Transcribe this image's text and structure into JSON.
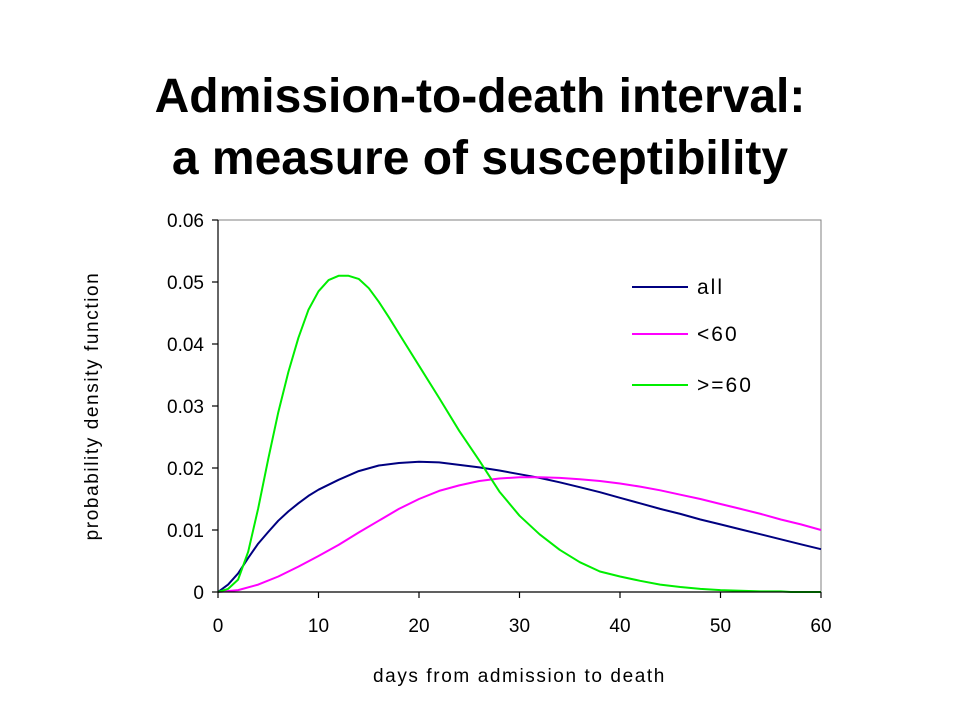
{
  "title": {
    "line1": "Admission-to-death interval:",
    "line2": "a measure of susceptibility"
  },
  "chart_data": {
    "type": "line",
    "xlabel": "days from admission to death",
    "ylabel": "probability density function",
    "xlim": [
      0,
      60
    ],
    "ylim": [
      0,
      0.06
    ],
    "xticks": [
      "0",
      "10",
      "20",
      "30",
      "40",
      "50",
      "60"
    ],
    "yticks": [
      "0",
      "0.01",
      "0.02",
      "0.03",
      "0.04",
      "0.05",
      "0.06"
    ],
    "grid": false,
    "legend_position": "top-right",
    "series": [
      {
        "name": "all",
        "color": "#000080",
        "x": [
          0,
          1,
          2,
          3,
          4,
          5,
          6,
          7,
          8,
          9,
          10,
          12,
          14,
          16,
          18,
          20,
          22,
          24,
          26,
          28,
          30,
          32,
          34,
          36,
          38,
          40,
          42,
          44,
          46,
          48,
          50,
          52,
          54,
          56,
          58,
          60
        ],
        "y": [
          0,
          0.0012,
          0.003,
          0.0055,
          0.0078,
          0.0097,
          0.0115,
          0.013,
          0.0143,
          0.0155,
          0.0165,
          0.0181,
          0.0195,
          0.0204,
          0.0208,
          0.021,
          0.0209,
          0.0205,
          0.0201,
          0.0196,
          0.019,
          0.0184,
          0.0177,
          0.0169,
          0.0161,
          0.0152,
          0.0143,
          0.0134,
          0.0126,
          0.0117,
          0.0109,
          0.0101,
          0.0093,
          0.0085,
          0.0077,
          0.0069
        ]
      },
      {
        "name": "<60",
        "color": "#ff00ff",
        "x": [
          0,
          2,
          4,
          6,
          8,
          10,
          12,
          14,
          16,
          18,
          20,
          22,
          24,
          26,
          28,
          30,
          32,
          34,
          36,
          38,
          40,
          42,
          44,
          46,
          48,
          50,
          52,
          54,
          56,
          58,
          60
        ],
        "y": [
          0,
          0.0003,
          0.0012,
          0.0025,
          0.0041,
          0.0058,
          0.0076,
          0.0096,
          0.0115,
          0.0134,
          0.015,
          0.0163,
          0.0172,
          0.0179,
          0.0183,
          0.0185,
          0.0185,
          0.0184,
          0.0182,
          0.0179,
          0.0175,
          0.017,
          0.0164,
          0.0157,
          0.015,
          0.0142,
          0.0134,
          0.0126,
          0.0117,
          0.0109,
          0.01
        ]
      },
      {
        "name": ">=60",
        "color": "#00ee00",
        "x": [
          0,
          1,
          2,
          3,
          4,
          5,
          6,
          7,
          8,
          9,
          10,
          11,
          12,
          13,
          14,
          15,
          16,
          17,
          18,
          20,
          22,
          24,
          26,
          28,
          30,
          32,
          34,
          36,
          38,
          40,
          42,
          44,
          46,
          48,
          50,
          52,
          54,
          56,
          57,
          60
        ],
        "y": [
          0,
          0.0005,
          0.002,
          0.0065,
          0.0135,
          0.0215,
          0.029,
          0.0355,
          0.041,
          0.0455,
          0.0485,
          0.0503,
          0.051,
          0.051,
          0.0505,
          0.049,
          0.0468,
          0.0443,
          0.0417,
          0.0365,
          0.0313,
          0.026,
          0.0212,
          0.0162,
          0.0123,
          0.0093,
          0.0068,
          0.0048,
          0.0033,
          0.0025,
          0.0018,
          0.0012,
          0.0008,
          0.0005,
          0.0003,
          0.0002,
          0.0001,
          0.0001,
          0,
          0
        ]
      }
    ]
  }
}
